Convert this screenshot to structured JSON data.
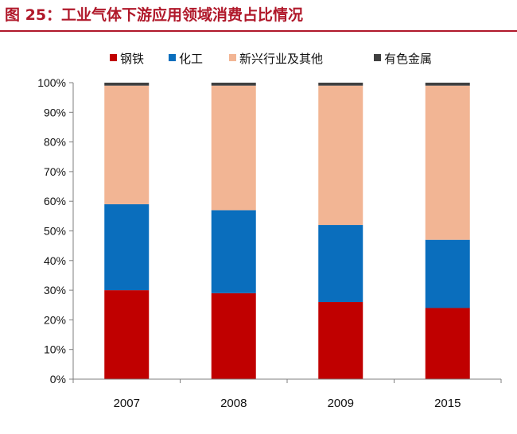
{
  "header": {
    "title": "图 25：工业气体下游应用领域消费占比情况"
  },
  "colors": {
    "title": "#b0182a",
    "steel": "#c00000",
    "chemical": "#0a6ebd",
    "emerging": "#f2b594",
    "nonferrous": "#404040"
  },
  "chart_data": {
    "type": "bar",
    "stacked": true,
    "categories": [
      "2007",
      "2008",
      "2009",
      "2015"
    ],
    "series": [
      {
        "name": "钢铁",
        "values": [
          30,
          29,
          26,
          24
        ]
      },
      {
        "name": "化工",
        "values": [
          29,
          28,
          26,
          23
        ]
      },
      {
        "name": "新兴行业及其他",
        "values": [
          40,
          42,
          47,
          52
        ]
      },
      {
        "name": "有色金属",
        "values": [
          1,
          1,
          1,
          1
        ]
      }
    ],
    "yticks": [
      "0%",
      "10%",
      "20%",
      "30%",
      "40%",
      "50%",
      "60%",
      "70%",
      "80%",
      "90%",
      "100%"
    ],
    "ylim": [
      0,
      100
    ],
    "legend_position": "top",
    "grid": false
  }
}
